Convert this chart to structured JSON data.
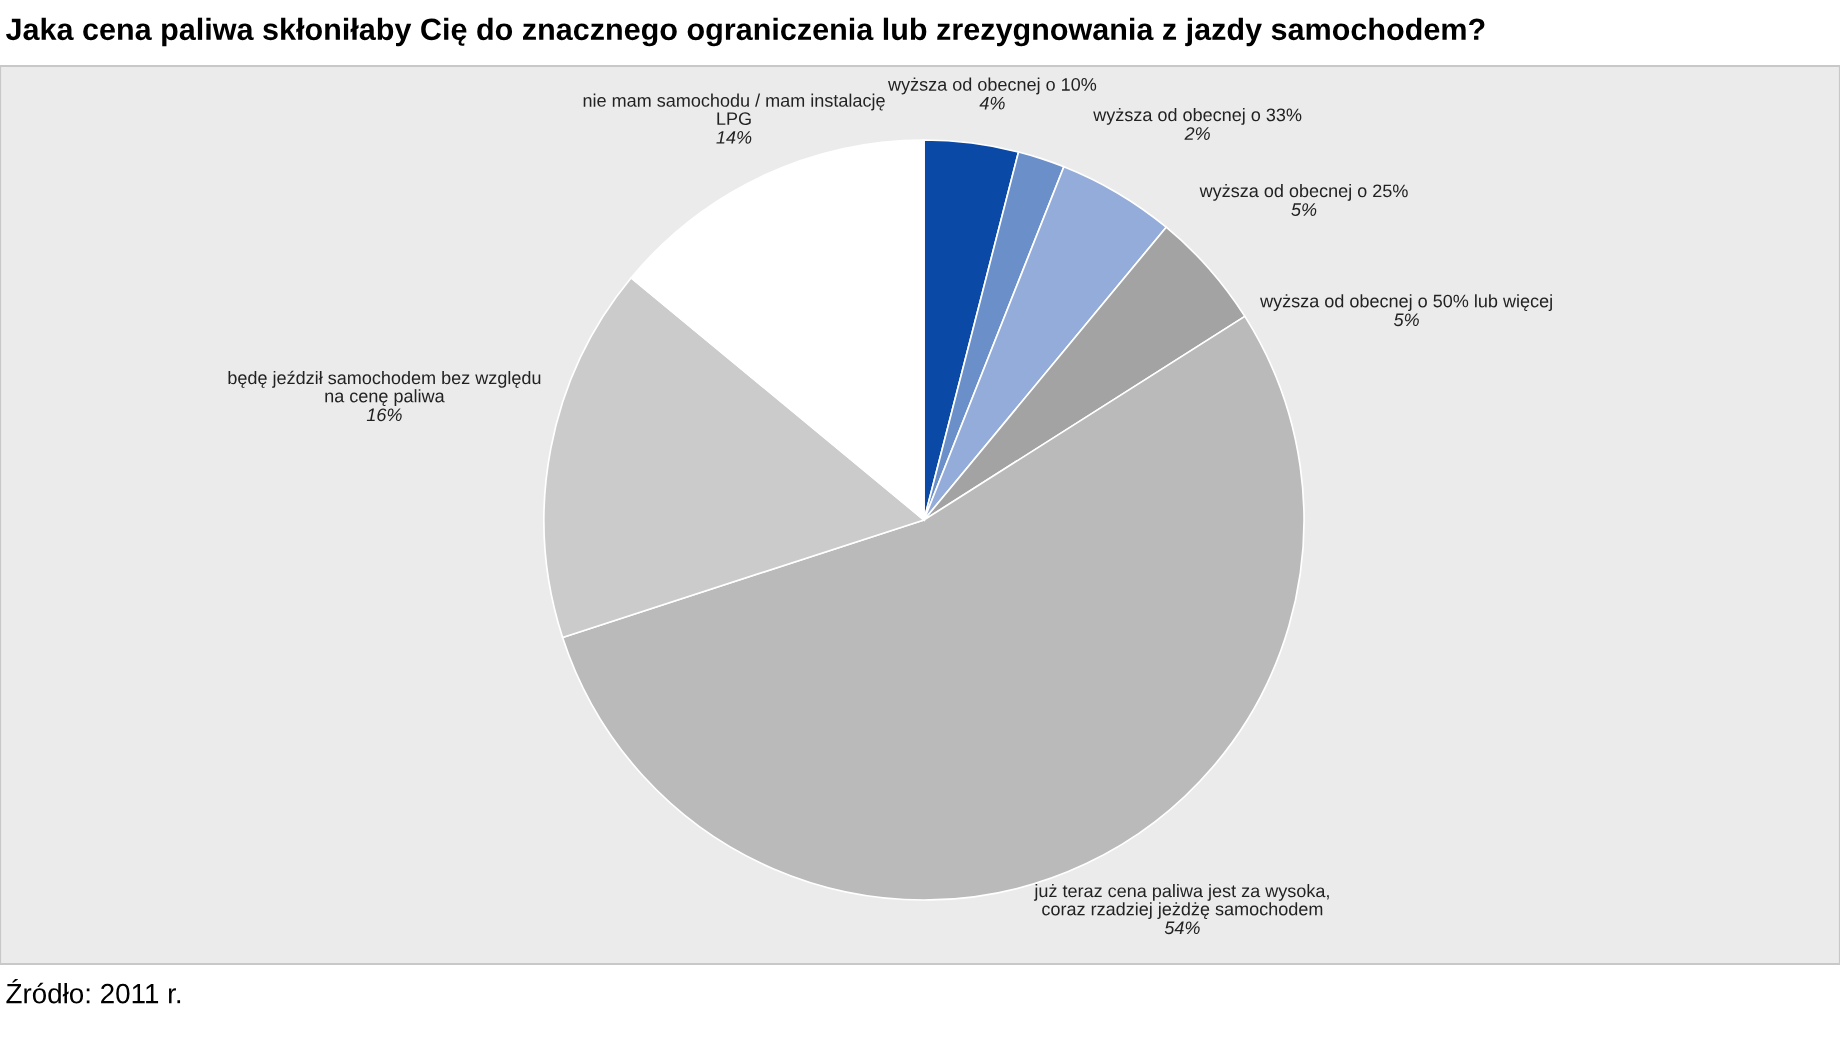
{
  "chart_data": {
    "type": "pie",
    "title": "Jaka cena paliwa skłoniłaby Cię do znacznego ograniczenia lub zrezygnowania z jazdy samochodem?",
    "categories": [
      "wyższa od obecnej o 10%",
      "wyższa od obecnej o 33%",
      "wyższa od obecnej o 25%",
      "wyższa od obecnej o 50% lub więcej",
      "już teraz cena paliwa jest za wysoka,\ncoraz rzadziej jeżdżę samochodem",
      "będę jeździł samochodem bez względu\nna cenę paliwa",
      "nie mam samochodu / mam instalację\nLPG"
    ],
    "values": [
      4,
      2,
      5,
      5,
      54,
      16,
      14
    ],
    "value_labels": [
      "4%",
      "2%",
      "5%",
      "5%",
      "54%",
      "16%",
      "14%"
    ],
    "colors": [
      "#0a4aa6",
      "#6b8fc9",
      "#94acd9",
      "#a3a3a3",
      "#bababa",
      "#cbcbcb",
      "#ffffff"
    ],
    "annotations": [
      "Źródło: 2011 r."
    ]
  }
}
